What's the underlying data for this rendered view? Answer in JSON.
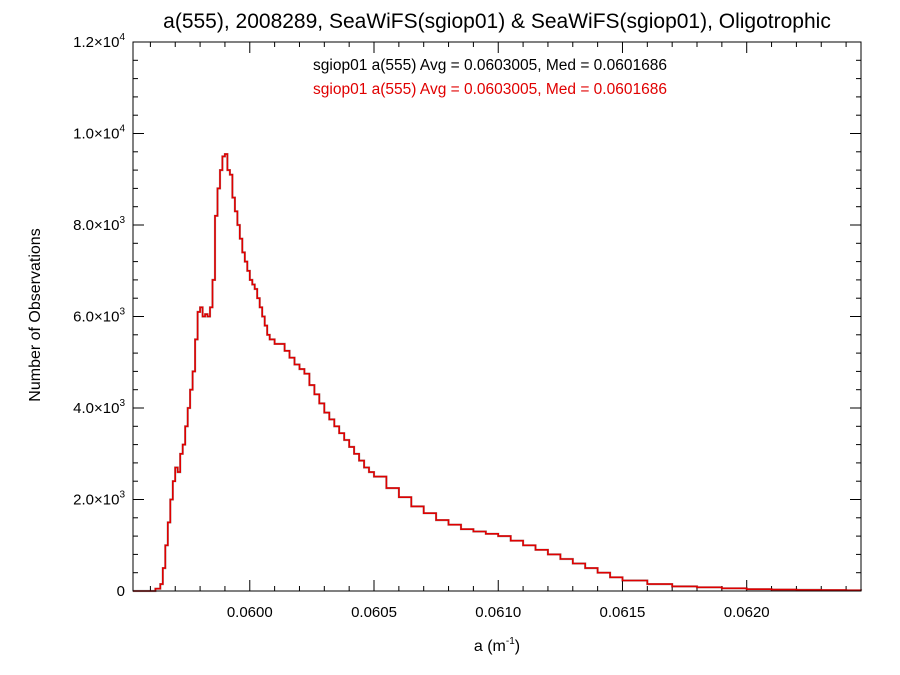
{
  "chart_data": {
    "type": "line",
    "title": "a(555), 2008289, SeaWiFS(sgiop01) & SeaWiFS(sgiop01), Oligotrophic",
    "xlabel_base": "a (m",
    "xlabel_exp": "-1",
    "xlabel_close": ")",
    "ylabel": "Number of Observations",
    "xlim": [
      0.05953,
      0.06246
    ],
    "ylim": [
      0,
      12000
    ],
    "x_ticks": [
      {
        "value": 0.06,
        "label": "0.0600"
      },
      {
        "value": 0.0605,
        "label": "0.0605"
      },
      {
        "value": 0.061,
        "label": "0.0610"
      },
      {
        "value": 0.0615,
        "label": "0.0615"
      },
      {
        "value": 0.062,
        "label": "0.0620"
      }
    ],
    "x_minor_step": 0.0001,
    "y_ticks": [
      {
        "value": 0,
        "mantissa": "0",
        "exp": ""
      },
      {
        "value": 2000,
        "mantissa": "2.0×10",
        "exp": "3"
      },
      {
        "value": 4000,
        "mantissa": "4.0×10",
        "exp": "3"
      },
      {
        "value": 6000,
        "mantissa": "6.0×10",
        "exp": "3"
      },
      {
        "value": 8000,
        "mantissa": "8.0×10",
        "exp": "3"
      },
      {
        "value": 10000,
        "mantissa": "1.0×10",
        "exp": "4"
      },
      {
        "value": 12000,
        "mantissa": "1.2×10",
        "exp": "4"
      }
    ],
    "y_minor_step": 400,
    "legend": [
      {
        "text": "sgiop01 a(555) Avg = 0.0603005, Med = 0.0601686",
        "color": "#000000"
      },
      {
        "text": "sgiop01 a(555) Avg = 0.0603005, Med = 0.0601686",
        "color": "#e00000"
      }
    ],
    "series_color": "#e00000",
    "series_stroke_under": "#000000",
    "series": [
      {
        "x": [
          0.05953,
          0.05955,
          0.0596,
          0.05962,
          0.05964,
          0.05965,
          0.05966,
          0.05967,
          0.05968,
          0.05969,
          0.0597,
          0.05971,
          0.05972,
          0.05973,
          0.05974,
          0.05975,
          0.05976,
          0.05977,
          0.05978,
          0.05979,
          0.0598,
          0.05981,
          0.05982,
          0.05983,
          0.05984,
          0.05985,
          0.05986,
          0.05987,
          0.05988,
          0.05989,
          0.0599,
          0.05991,
          0.05992,
          0.05993,
          0.05994,
          0.05995,
          0.05996,
          0.05997,
          0.05998,
          0.05999,
          0.06,
          0.06001,
          0.06002,
          0.06003,
          0.06004,
          0.06005,
          0.06006,
          0.06007,
          0.06008,
          0.0601,
          0.06012,
          0.06014,
          0.06016,
          0.06018,
          0.0602,
          0.06022,
          0.06024,
          0.06026,
          0.06028,
          0.0603,
          0.06032,
          0.06034,
          0.06036,
          0.06038,
          0.0604,
          0.06042,
          0.06044,
          0.06046,
          0.06048,
          0.0605,
          0.06055,
          0.0606,
          0.06065,
          0.0607,
          0.06075,
          0.0608,
          0.06085,
          0.0609,
          0.06095,
          0.061,
          0.06105,
          0.0611,
          0.06115,
          0.0612,
          0.06125,
          0.0613,
          0.06135,
          0.0614,
          0.06145,
          0.0615,
          0.0616,
          0.0617,
          0.0618,
          0.0619,
          0.062,
          0.0621,
          0.0622,
          0.0623,
          0.0624,
          0.06246
        ],
        "y": [
          0,
          0,
          0,
          50,
          150,
          500,
          1000,
          1500,
          2000,
          2400,
          2700,
          2600,
          3000,
          3200,
          3600,
          4000,
          4400,
          4800,
          5500,
          6100,
          6200,
          6000,
          6050,
          6000,
          6200,
          6800,
          8200,
          8800,
          9200,
          9500,
          9550,
          9200,
          9100,
          8600,
          8300,
          8000,
          7700,
          7400,
          7200,
          7000,
          6800,
          6700,
          6600,
          6400,
          6200,
          6000,
          5800,
          5600,
          5500,
          5400,
          5400,
          5250,
          5100,
          4950,
          4850,
          4750,
          4500,
          4300,
          4100,
          3900,
          3750,
          3600,
          3450,
          3300,
          3150,
          3000,
          2850,
          2700,
          2600,
          2500,
          2250,
          2050,
          1850,
          1700,
          1550,
          1450,
          1350,
          1300,
          1250,
          1200,
          1100,
          1000,
          900,
          800,
          700,
          600,
          500,
          400,
          300,
          230,
          150,
          100,
          80,
          60,
          40,
          30,
          25,
          20,
          15,
          10
        ]
      }
    ]
  }
}
